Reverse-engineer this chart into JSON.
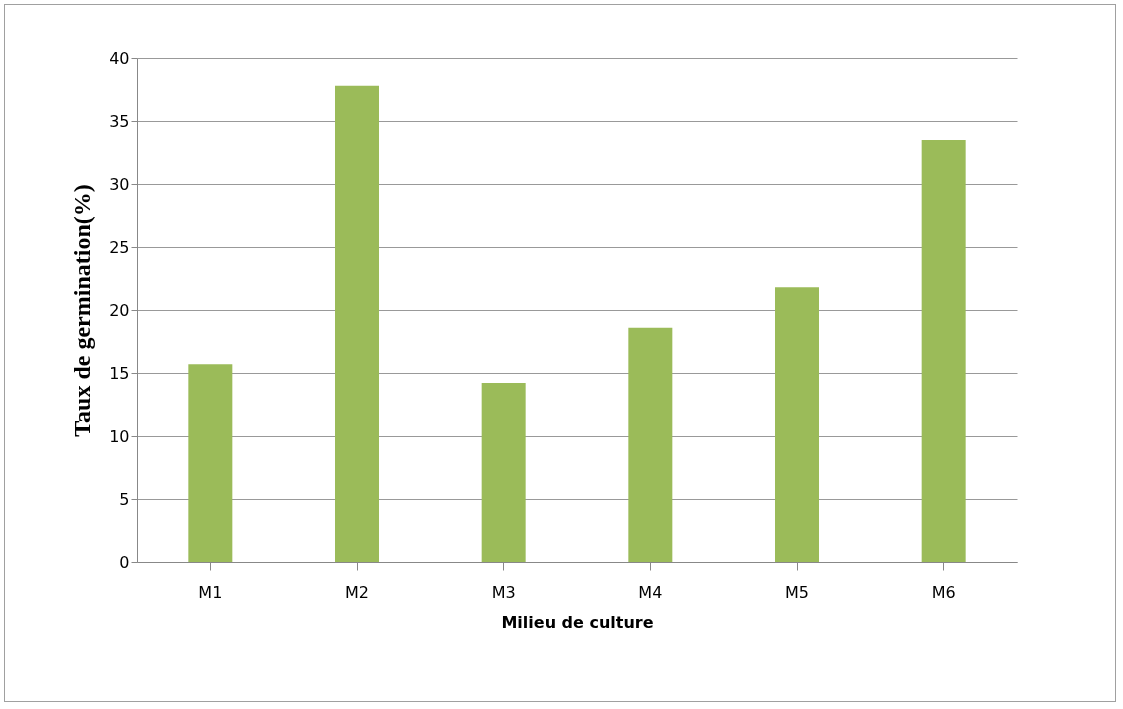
{
  "chart_data": {
    "type": "bar",
    "xlabel": "Milieu  de culture",
    "ylabel": "Taux de germination(%)",
    "categories": [
      "M1",
      "M2",
      "M3",
      "M4",
      "M5",
      "M6"
    ],
    "values": [
      15.7,
      37.8,
      14.2,
      18.6,
      21.8,
      33.5
    ],
    "color": "#9bbb59",
    "ylim": [
      0,
      40
    ],
    "yticks": [
      0,
      5,
      10,
      15,
      20,
      25,
      30,
      35,
      40
    ],
    "grid": "y"
  }
}
